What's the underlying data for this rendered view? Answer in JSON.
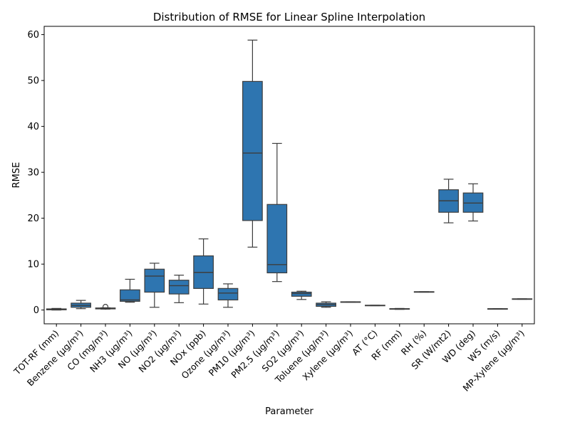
{
  "chart_data": {
    "type": "box",
    "title": "Distribution of RMSE for Linear Spline Interpolation",
    "xlabel": "Parameter",
    "ylabel": "RMSE",
    "ylim": [
      -3,
      61.8
    ],
    "yticks": [
      0,
      10,
      20,
      30,
      40,
      50,
      60
    ],
    "grid": false,
    "legend": "none",
    "box_color": "#2e75b0",
    "line_color": "#3d3d3d",
    "categories": [
      "TOT-RF (mm)",
      "Benzene (µg/m³)",
      "CO (mg/m³)",
      "NH3 (µg/m³)",
      "NO (µg/m³)",
      "NO2 (µg/m³)",
      "NOx (ppb)",
      "Ozone (µg/m³)",
      "PM10 (µg/m³)",
      "PM2.5 (µg/m³)",
      "SO2 (µg/m³)",
      "Toluene (µg/m³)",
      "Xylene (µg/m³)",
      "AT (°C)",
      "RF (mm)",
      "RH (%)",
      "SR (W/mt2)",
      "WD (deg)",
      "WS (m/s)",
      "MP-Xylene (µg/m³)"
    ],
    "boxes": [
      {
        "whisker_low": 0.0,
        "q1": 0.05,
        "median": 0.15,
        "q3": 0.25,
        "whisker_high": 0.35,
        "outliers": []
      },
      {
        "whisker_low": 0.3,
        "q1": 0.6,
        "median": 1.0,
        "q3": 1.5,
        "whisker_high": 2.1,
        "outliers": []
      },
      {
        "whisker_low": 0.2,
        "q1": 0.25,
        "median": 0.35,
        "q3": 0.45,
        "whisker_high": 0.5,
        "outliers": [
          0.7
        ]
      },
      {
        "whisker_low": 1.7,
        "q1": 1.9,
        "median": 2.2,
        "q3": 4.4,
        "whisker_high": 6.7,
        "outliers": []
      },
      {
        "whisker_low": 0.6,
        "q1": 3.9,
        "median": 7.4,
        "q3": 8.9,
        "whisker_high": 10.2,
        "outliers": []
      },
      {
        "whisker_low": 1.6,
        "q1": 3.5,
        "median": 5.3,
        "q3": 6.5,
        "whisker_high": 7.6,
        "outliers": []
      },
      {
        "whisker_low": 1.3,
        "q1": 4.7,
        "median": 8.2,
        "q3": 11.8,
        "whisker_high": 15.5,
        "outliers": []
      },
      {
        "whisker_low": 0.6,
        "q1": 2.2,
        "median": 3.7,
        "q3": 4.7,
        "whisker_high": 5.7,
        "outliers": []
      },
      {
        "whisker_low": 13.7,
        "q1": 19.5,
        "median": 34.2,
        "q3": 49.8,
        "whisker_high": 58.8,
        "outliers": []
      },
      {
        "whisker_low": 6.2,
        "q1": 8.1,
        "median": 9.9,
        "q3": 23.0,
        "whisker_high": 36.3,
        "outliers": []
      },
      {
        "whisker_low": 2.3,
        "q1": 3.0,
        "median": 3.6,
        "q3": 3.9,
        "whisker_high": 4.1,
        "outliers": []
      },
      {
        "whisker_low": 0.6,
        "q1": 0.8,
        "median": 1.2,
        "q3": 1.5,
        "whisker_high": 1.8,
        "outliers": []
      },
      {
        "whisker_low": 1.7,
        "q1": 1.7,
        "median": 1.75,
        "q3": 1.8,
        "whisker_high": 1.8,
        "outliers": []
      },
      {
        "whisker_low": 0.95,
        "q1": 0.95,
        "median": 1.0,
        "q3": 1.05,
        "whisker_high": 1.05,
        "outliers": []
      },
      {
        "whisker_low": 0.15,
        "q1": 0.2,
        "median": 0.25,
        "q3": 0.3,
        "whisker_high": 0.35,
        "outliers": []
      },
      {
        "whisker_low": 3.9,
        "q1": 3.9,
        "median": 3.95,
        "q3": 4.0,
        "whisker_high": 4.0,
        "outliers": []
      },
      {
        "whisker_low": 19.0,
        "q1": 21.3,
        "median": 23.8,
        "q3": 26.2,
        "whisker_high": 28.5,
        "outliers": []
      },
      {
        "whisker_low": 19.4,
        "q1": 21.3,
        "median": 23.3,
        "q3": 25.5,
        "whisker_high": 27.5,
        "outliers": []
      },
      {
        "whisker_low": 0.2,
        "q1": 0.2,
        "median": 0.25,
        "q3": 0.3,
        "whisker_high": 0.3,
        "outliers": []
      },
      {
        "whisker_low": 2.35,
        "q1": 2.35,
        "median": 2.4,
        "q3": 2.45,
        "whisker_high": 2.45,
        "outliers": []
      }
    ]
  }
}
